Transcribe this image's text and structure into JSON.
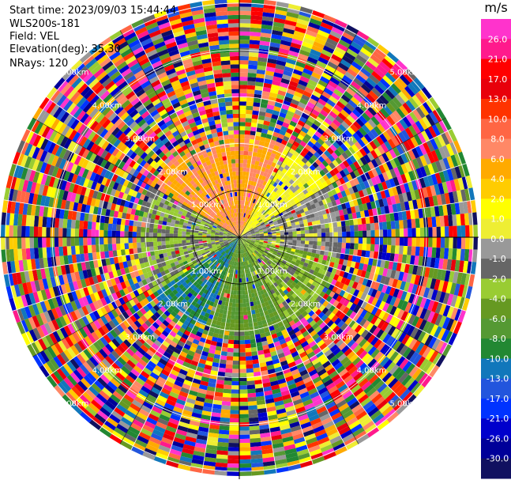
{
  "info": {
    "start_time": "Start time: 2023/09/03 15:44:44",
    "instrument": "WLS200s-181",
    "field": "Field: VEL",
    "elevation": "Elevation(deg): 35.30",
    "nrays": "NRays: 120"
  },
  "chart_data": {
    "type": "ppi",
    "field": "VEL",
    "units": "m/s",
    "nrays": 120,
    "range_rings": [
      {
        "value": 1,
        "label": "1.00km"
      },
      {
        "value": 2,
        "label": "2.00km"
      },
      {
        "value": 3,
        "label": "3.00km"
      },
      {
        "value": 4,
        "label": "4.00km"
      },
      {
        "value": 5,
        "label": "5.00km"
      }
    ],
    "max_range": 5.1,
    "colorbar": {
      "unit_label": "m/s",
      "ticks": [
        "26.0",
        "21.0",
        "17.0",
        "13.0",
        "10.0",
        "8.0",
        "6.0",
        "4.0",
        "2.0",
        "1.0",
        "0.0",
        "-1.0",
        "-2.0",
        "-4.0",
        "-6.0",
        "-8.0",
        "-10.0",
        "-13.0",
        "-17.0",
        "-21.0",
        "-26.0",
        "-30.0"
      ],
      "colors": [
        "#ff33cc",
        "#ff1a8c",
        "#ff0000",
        "#e8000b",
        "#ff3300",
        "#ff6644",
        "#ff8866",
        "#ffaa00",
        "#ffcc00",
        "#ffff00",
        "#eeee33",
        "#999999",
        "#666666",
        "#99cc33",
        "#669922",
        "#559933",
        "#228833",
        "#1177bb",
        "#2255dd",
        "#0033ff",
        "#0000cc",
        "#000099",
        "#101060"
      ]
    },
    "coherent_region": {
      "max_range_km": 2.2,
      "description_sectors": [
        {
          "from_az": -60,
          "to_az": 25,
          "value": 8
        },
        {
          "from_az": 25,
          "to_az": 60,
          "value": 2
        },
        {
          "from_az": 60,
          "to_az": 100,
          "value": 0
        },
        {
          "from_az": 100,
          "to_az": 150,
          "value": -2
        },
        {
          "from_az": 150,
          "to_az": 200,
          "value": -4
        },
        {
          "from_az": 200,
          "to_az": 235,
          "value": -8
        },
        {
          "from_az": 235,
          "to_az": 300,
          "value": -1
        }
      ]
    }
  }
}
